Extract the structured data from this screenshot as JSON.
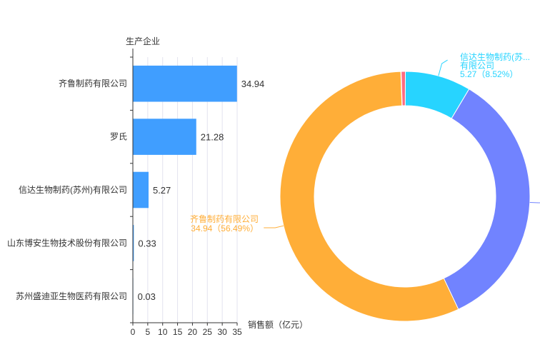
{
  "chart_data": [
    {
      "type": "bar",
      "orientation": "horizontal",
      "categories": [
        "齐鲁制药有限公司",
        "罗氏",
        "信达生物制药(苏州)有限公司",
        "山东博安生物技术股份有限公司",
        "苏州盛迪亚生物医药有限公司"
      ],
      "values": [
        34.94,
        21.28,
        5.27,
        0.33,
        0.03
      ],
      "value_labels": [
        "34.94",
        "21.28",
        "5.27",
        "0.33",
        "0.03"
      ],
      "xlabel": "销售额（亿元）",
      "ylabel": "生产企业",
      "xlim": [
        0,
        35
      ],
      "xticks": [
        "0",
        "5",
        "10",
        "15",
        "20",
        "25",
        "30",
        "35"
      ],
      "grid": true,
      "bar_color": "#409eff"
    },
    {
      "type": "pie",
      "style": "donut",
      "slices": [
        {
          "name": "齐鲁制药有限公司",
          "value": 34.94,
          "percent": 56.49,
          "color": "#ffae38"
        },
        {
          "name": "罗氏",
          "value": 21.28,
          "percent": 34.41,
          "color": "#7183ff"
        },
        {
          "name": "信达生物制药(苏州)有限公司",
          "value": 5.27,
          "percent": 8.52,
          "color": "#27d4ff"
        },
        {
          "name": "山东博安生物技术股份有限公司",
          "value": 0.33,
          "percent": 0.53,
          "color": "#ff6b81"
        },
        {
          "name": "苏州盛迪亚生物医药有限公司",
          "value": 0.03,
          "percent": 0.05,
          "color": "#bb89f1"
        }
      ],
      "visible_labels": [
        {
          "slice": 2,
          "lines": [
            "信达生物制药(苏...",
            "有限公司",
            "5.27（8.52%）"
          ]
        },
        {
          "slice": 0,
          "lines": [
            "齐鲁制药有限公司",
            "34.94（56.49%）"
          ]
        }
      ]
    }
  ]
}
